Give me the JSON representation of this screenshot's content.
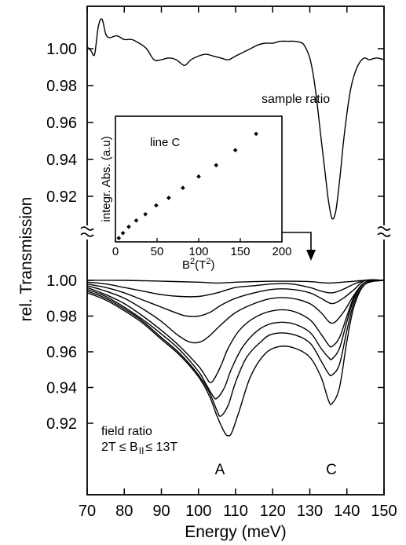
{
  "chart_data": {
    "type": "line",
    "xlabel": "Energy (meV)",
    "ylabel": "rel. Transmission",
    "xlim": [
      70,
      150
    ],
    "x_ticks": [
      "70",
      "80",
      "90",
      "100",
      "110",
      "120",
      "130",
      "140",
      "150"
    ],
    "upper_panel": {
      "ylim": [
        0.905,
        1.012
      ],
      "y_ticks": [
        "1.00",
        "0.98",
        "0.96",
        "0.94",
        "0.92"
      ],
      "series": [
        {
          "name": "sample ratio",
          "x": [
            70,
            71,
            72,
            73,
            74,
            75,
            76,
            78,
            80,
            82,
            84,
            86,
            88,
            90,
            92,
            94,
            96,
            97,
            98,
            100,
            102,
            104,
            106,
            108,
            110,
            112,
            114,
            116,
            118,
            120,
            122,
            124,
            126,
            128,
            129,
            130,
            131,
            132,
            133,
            134,
            135,
            136,
            137,
            138,
            139,
            140,
            141,
            142,
            143,
            144,
            145,
            146,
            148,
            150
          ],
          "y": [
            1.001,
            0.999,
            0.997,
            1.012,
            1.016,
            1.008,
            1.006,
            1.007,
            1.005,
            1.005,
            1.003,
            1.0,
            0.994,
            0.994,
            0.995,
            0.994,
            0.991,
            0.992,
            0.994,
            0.996,
            0.997,
            0.996,
            0.995,
            0.994,
            0.996,
            0.998,
            1.0,
            1.002,
            1.003,
            1.003,
            1.004,
            1.004,
            1.004,
            1.003,
            1.0,
            0.995,
            0.985,
            0.97,
            0.952,
            0.935,
            0.918,
            0.908,
            0.912,
            0.928,
            0.948,
            0.965,
            0.978,
            0.986,
            0.991,
            0.994,
            0.995,
            0.994,
            0.995,
            0.994
          ]
        }
      ]
    },
    "lower_panel": {
      "ylim": [
        0.91,
        1.004
      ],
      "y_ticks": [
        "1.00",
        "0.98",
        "0.96",
        "0.94",
        "0.92"
      ],
      "annotations": [
        "field ratio",
        "2T ≤ B",
        "II",
        "≤ 13T",
        "A",
        "C"
      ],
      "series": [
        {
          "x": [
            70,
            80,
            90,
            100,
            105,
            110,
            115,
            120,
            125,
            130,
            135,
            140,
            145,
            150
          ],
          "y": [
            1.0,
            1.0,
            0.9995,
            0.999,
            0.9985,
            0.999,
            0.9993,
            0.9995,
            0.9995,
            0.9993,
            0.9985,
            0.9992,
            1.0,
            1.0
          ]
        },
        {
          "x": [
            70,
            75,
            80,
            85,
            90,
            95,
            100,
            105,
            110,
            115,
            120,
            125,
            130,
            133,
            136,
            139,
            142,
            145,
            150
          ],
          "y": [
            0.999,
            0.998,
            0.996,
            0.994,
            0.992,
            0.991,
            0.991,
            0.993,
            0.996,
            0.997,
            0.998,
            0.998,
            0.996,
            0.994,
            0.993,
            0.995,
            0.998,
            1.0,
            1.0
          ]
        },
        {
          "x": [
            70,
            75,
            80,
            85,
            90,
            95,
            97,
            100,
            103,
            106,
            110,
            115,
            120,
            125,
            130,
            133,
            136,
            139,
            142,
            145,
            150
          ],
          "y": [
            0.998,
            0.996,
            0.993,
            0.989,
            0.985,
            0.981,
            0.98,
            0.98,
            0.982,
            0.986,
            0.99,
            0.993,
            0.995,
            0.995,
            0.993,
            0.99,
            0.987,
            0.99,
            0.995,
            1.0,
            1.0
          ]
        },
        {
          "x": [
            70,
            75,
            80,
            85,
            90,
            94,
            97,
            99,
            101,
            103,
            106,
            110,
            115,
            120,
            125,
            130,
            133,
            136,
            139,
            142,
            145,
            150
          ],
          "y": [
            0.997,
            0.994,
            0.99,
            0.984,
            0.977,
            0.97,
            0.966,
            0.965,
            0.966,
            0.969,
            0.975,
            0.982,
            0.987,
            0.99,
            0.99,
            0.987,
            0.982,
            0.976,
            0.982,
            0.992,
            0.999,
            1.0
          ]
        },
        {
          "x": [
            70,
            75,
            80,
            85,
            90,
            95,
            100,
            102,
            103,
            104,
            106,
            108,
            111,
            115,
            120,
            125,
            130,
            133,
            135,
            136,
            138,
            140,
            142,
            145,
            150
          ],
          "y": [
            0.996,
            0.992,
            0.987,
            0.98,
            0.972,
            0.963,
            0.952,
            0.946,
            0.943,
            0.944,
            0.952,
            0.962,
            0.972,
            0.979,
            0.983,
            0.983,
            0.978,
            0.97,
            0.964,
            0.963,
            0.968,
            0.98,
            0.991,
            0.999,
            1.0
          ]
        },
        {
          "x": [
            70,
            75,
            80,
            85,
            90,
            95,
            100,
            102,
            104,
            105,
            107,
            109,
            112,
            116,
            120,
            125,
            130,
            133,
            135,
            136,
            138,
            140,
            142,
            145,
            150
          ],
          "y": [
            0.995,
            0.991,
            0.985,
            0.978,
            0.97,
            0.961,
            0.949,
            0.942,
            0.935,
            0.934,
            0.94,
            0.951,
            0.963,
            0.972,
            0.976,
            0.976,
            0.971,
            0.962,
            0.957,
            0.956,
            0.962,
            0.977,
            0.99,
            0.999,
            1.0
          ]
        },
        {
          "x": [
            70,
            75,
            80,
            85,
            90,
            95,
            100,
            103,
            105,
            106,
            108,
            110,
            113,
            117,
            120,
            125,
            130,
            133,
            135,
            136,
            138,
            140,
            142,
            145,
            150
          ],
          "y": [
            0.994,
            0.99,
            0.984,
            0.977,
            0.968,
            0.959,
            0.947,
            0.937,
            0.927,
            0.924,
            0.93,
            0.943,
            0.957,
            0.966,
            0.97,
            0.97,
            0.965,
            0.955,
            0.948,
            0.947,
            0.953,
            0.972,
            0.988,
            0.998,
            1.0
          ]
        },
        {
          "x": [
            70,
            75,
            80,
            85,
            90,
            95,
            100,
            103,
            105,
            107,
            108,
            109,
            111,
            114,
            118,
            122,
            126,
            130,
            133,
            135,
            136,
            138,
            140,
            142,
            145,
            150
          ],
          "y": [
            0.993,
            0.989,
            0.983,
            0.976,
            0.967,
            0.958,
            0.946,
            0.935,
            0.924,
            0.915,
            0.913,
            0.915,
            0.927,
            0.946,
            0.959,
            0.963,
            0.962,
            0.957,
            0.946,
            0.933,
            0.931,
            0.94,
            0.966,
            0.986,
            0.998,
            1.0
          ]
        }
      ]
    },
    "inset": {
      "title": "line C",
      "xlabel": "B",
      "xlabel_sup": "2",
      "xlabel_unit": "(T",
      "xlabel_unit_sup": "2",
      "xlabel_close": ")",
      "ylabel": "integr. Abs. (a.u)",
      "xlim": [
        0,
        200
      ],
      "ylim": [
        0,
        1.0
      ],
      "x_ticks": [
        "0",
        "50",
        "100",
        "150",
        "200"
      ],
      "type": "scatter",
      "x": [
        4,
        9,
        16,
        25,
        36,
        49,
        64,
        81,
        100,
        121,
        144,
        169
      ],
      "y": [
        0.03,
        0.07,
        0.12,
        0.17,
        0.22,
        0.29,
        0.35,
        0.43,
        0.52,
        0.61,
        0.73,
        0.86
      ]
    }
  }
}
